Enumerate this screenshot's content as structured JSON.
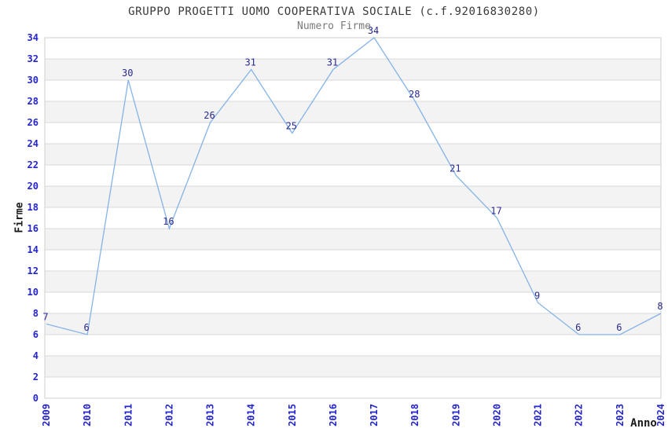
{
  "chart_data": {
    "type": "line",
    "title": "GRUPPO PROGETTI UOMO COOPERATIVA SOCIALE (c.f.92016830280)",
    "subtitle": "Numero Firme",
    "xlabel": "Anno",
    "ylabel": "Firme",
    "categories": [
      "2009",
      "2010",
      "2011",
      "2012",
      "2013",
      "2014",
      "2015",
      "2016",
      "2017",
      "2018",
      "2019",
      "2020",
      "2021",
      "2022",
      "2023",
      "2024"
    ],
    "values": [
      7,
      6,
      30,
      16,
      26,
      31,
      25,
      31,
      34,
      28,
      21,
      17,
      9,
      6,
      6,
      8
    ],
    "ylim": [
      0,
      34
    ],
    "y_ticks": [
      0,
      2,
      4,
      6,
      8,
      10,
      12,
      14,
      16,
      18,
      20,
      22,
      24,
      26,
      28,
      30,
      32,
      34
    ],
    "grid": "horizontal gridlines with alternating shaded bands every 2 units",
    "legend": "none",
    "point_labels_visible": true,
    "x_tick_rotation_deg": 90,
    "colors": {
      "line": "#85b3e8",
      "tick_label": "#2424cc",
      "point_label": "#28288f",
      "band": "#f3f3f3",
      "grid_line": "#d8d8d8",
      "plot_border": "#cfcfcf",
      "title": "#3a3a3a",
      "subtitle": "#7a7a7a",
      "axis_label": "#1a1a1a",
      "background": "#ffffff"
    }
  }
}
